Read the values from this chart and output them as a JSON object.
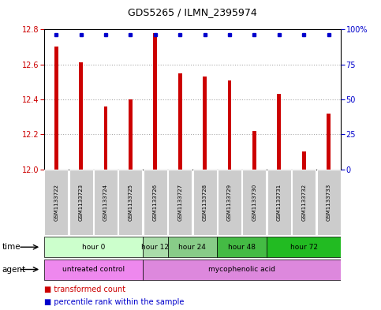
{
  "title": "GDS5265 / ILMN_2395974",
  "samples": [
    "GSM1133722",
    "GSM1133723",
    "GSM1133724",
    "GSM1133725",
    "GSM1133726",
    "GSM1133727",
    "GSM1133728",
    "GSM1133729",
    "GSM1133730",
    "GSM1133731",
    "GSM1133732",
    "GSM1133733"
  ],
  "bar_values": [
    12.7,
    12.61,
    12.36,
    12.4,
    12.78,
    12.55,
    12.53,
    12.51,
    12.22,
    12.43,
    12.1,
    12.32
  ],
  "percentile_values": [
    100,
    100,
    100,
    100,
    100,
    100,
    100,
    100,
    100,
    100,
    100,
    100
  ],
  "bar_color": "#cc0000",
  "percentile_color": "#0000cc",
  "ymin": 12.0,
  "ymax": 12.8,
  "yticks": [
    12.0,
    12.2,
    12.4,
    12.6,
    12.8
  ],
  "right_yticks": [
    0,
    25,
    50,
    75,
    100
  ],
  "right_yticklabels": [
    "0",
    "25",
    "50",
    "75",
    "100%"
  ],
  "time_groups": [
    {
      "label": "hour 0",
      "start": 0,
      "end": 4,
      "color": "#ccffcc"
    },
    {
      "label": "hour 12",
      "start": 4,
      "end": 5,
      "color": "#aaddaa"
    },
    {
      "label": "hour 24",
      "start": 5,
      "end": 7,
      "color": "#88cc88"
    },
    {
      "label": "hour 48",
      "start": 7,
      "end": 9,
      "color": "#44bb44"
    },
    {
      "label": "hour 72",
      "start": 9,
      "end": 12,
      "color": "#22bb22"
    }
  ],
  "agent_groups": [
    {
      "label": "untreated control",
      "start": 0,
      "end": 4,
      "color": "#ee88ee"
    },
    {
      "label": "mycophenolic acid",
      "start": 4,
      "end": 12,
      "color": "#dd88dd"
    }
  ],
  "background_color": "#ffffff",
  "plot_bg": "#ffffff",
  "dotted_line_color": "#aaaaaa",
  "sample_bg_color": "#cccccc",
  "sample_text_color": "#000000",
  "bar_width": 0.15
}
